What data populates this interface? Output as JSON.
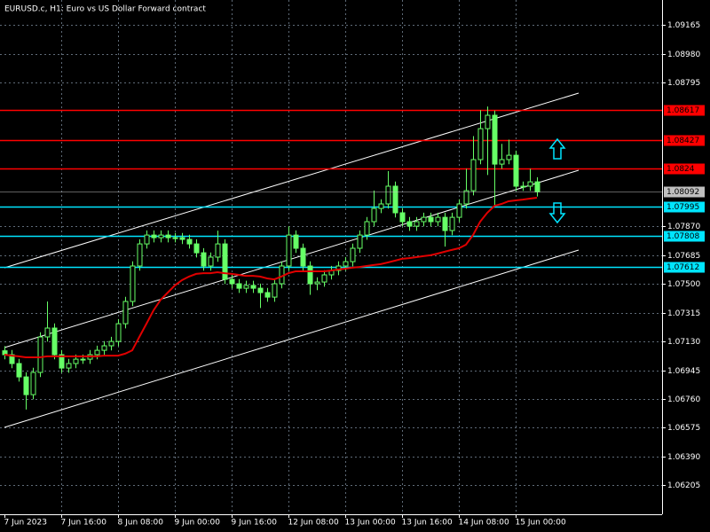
{
  "chart_data": {
    "type": "candlestick",
    "title": "EURUSD.c, H1:  Euro vs US Dollar Forward contract",
    "categories": [
      "7 Jun 2023",
      null,
      null,
      null,
      null,
      null,
      null,
      null,
      "7 Jun 16:00",
      null,
      null,
      null,
      null,
      null,
      null,
      null,
      "8 Jun 08:00",
      null,
      null,
      null,
      null,
      null,
      null,
      null,
      "9 Jun 00:00",
      null,
      null,
      null,
      null,
      null,
      null,
      null,
      "9 Jun 16:00",
      null,
      null,
      null,
      null,
      null,
      null,
      null,
      "12 Jun 08:00",
      null,
      null,
      null,
      null,
      null,
      null,
      null,
      "13 Jun 00:00",
      null,
      null,
      null,
      null,
      null,
      null,
      null,
      "13 Jun 16:00",
      null,
      null,
      null,
      null,
      null,
      null,
      null,
      "14 Jun 08:00",
      null,
      null,
      null,
      null,
      null,
      null,
      null,
      "15 Jun 00:00",
      null,
      null,
      null
    ],
    "open": [
      1.0707,
      1.07045,
      1.06988,
      1.06902,
      1.06788,
      1.06931,
      1.07159,
      1.07216,
      1.07045,
      1.06959,
      1.06988,
      1.07016,
      1.07016,
      1.07045,
      1.07073,
      1.07102,
      1.0713,
      1.07244,
      1.07387,
      1.07615,
      1.07757,
      1.07814,
      1.07797,
      1.07814,
      1.07797,
      1.07797,
      1.07786,
      1.07757,
      1.077,
      1.07615,
      1.07672,
      1.07757,
      1.07529,
      1.07501,
      1.07472,
      1.0749,
      1.07472,
      1.07444,
      1.07415,
      1.07501,
      1.07615,
      1.07814,
      1.07729,
      1.07615,
      1.07501,
      1.07512,
      1.07558,
      1.07586,
      1.07615,
      1.07643,
      1.07729,
      1.07814,
      1.079,
      1.07985,
      1.08014,
      1.08128,
      1.07957,
      1.079,
      1.07871,
      1.079,
      1.07928,
      1.079,
      1.07928,
      1.07843,
      1.07928,
      1.08014,
      1.08099,
      1.08299,
      1.08498,
      1.08584,
      1.0827,
      1.08299,
      1.08327,
      1.08128,
      1.08128,
      1.08156
    ],
    "high": [
      1.071,
      1.07075,
      1.07018,
      1.06932,
      1.06961,
      1.07189,
      1.07387,
      1.07246,
      1.07075,
      1.07018,
      1.07046,
      1.07046,
      1.07075,
      1.07103,
      1.07132,
      1.0716,
      1.07274,
      1.07417,
      1.07645,
      1.07787,
      1.07844,
      1.07844,
      1.07844,
      1.07844,
      1.07827,
      1.07827,
      1.07816,
      1.07787,
      1.0773,
      1.07702,
      1.07842,
      1.07787,
      1.07559,
      1.07531,
      1.0752,
      1.0752,
      1.07502,
      1.07474,
      1.07531,
      1.07645,
      1.0787,
      1.07844,
      1.07759,
      1.07645,
      1.07542,
      1.07588,
      1.07616,
      1.07645,
      1.07673,
      1.07759,
      1.07844,
      1.0793,
      1.081,
      1.08044,
      1.08225,
      1.08158,
      1.07987,
      1.0793,
      1.0793,
      1.07958,
      1.07958,
      1.07958,
      1.07958,
      1.07958,
      1.08044,
      1.0824,
      1.0845,
      1.08617,
      1.0864,
      1.08614,
      1.084,
      1.08427,
      1.08357,
      1.08158,
      1.0824,
      1.08186
    ],
    "low": [
      1.07015,
      1.06958,
      1.06872,
      1.06692,
      1.06758,
      1.06901,
      1.07129,
      1.07015,
      1.06929,
      1.06929,
      1.06958,
      1.06986,
      1.06986,
      1.07015,
      1.07043,
      1.07072,
      1.071,
      1.07214,
      1.07357,
      1.07585,
      1.07727,
      1.07767,
      1.07767,
      1.07767,
      1.07767,
      1.07756,
      1.07727,
      1.0767,
      1.07585,
      1.07585,
      1.07642,
      1.07499,
      1.07471,
      1.07442,
      1.07442,
      1.07442,
      1.07345,
      1.07385,
      1.07385,
      1.07471,
      1.07585,
      1.07699,
      1.07585,
      1.0743,
      1.0746,
      1.07482,
      1.07528,
      1.07556,
      1.07585,
      1.07613,
      1.07699,
      1.07784,
      1.0787,
      1.07955,
      1.07984,
      1.07927,
      1.0787,
      1.07841,
      1.07841,
      1.0787,
      1.0787,
      1.0787,
      1.0774,
      1.07813,
      1.07898,
      1.07984,
      1.08069,
      1.08269,
      1.082,
      1.08,
      1.0824,
      1.08269,
      1.08098,
      1.08098,
      1.08098,
      1.08062
    ],
    "close": [
      1.07045,
      1.06988,
      1.06902,
      1.06788,
      1.06931,
      1.07159,
      1.07216,
      1.07045,
      1.06959,
      1.06988,
      1.07016,
      1.07016,
      1.07045,
      1.07073,
      1.07102,
      1.0713,
      1.07244,
      1.07387,
      1.07615,
      1.07757,
      1.07814,
      1.07797,
      1.07814,
      1.07797,
      1.07797,
      1.07786,
      1.07757,
      1.077,
      1.07615,
      1.07672,
      1.07757,
      1.07529,
      1.07501,
      1.07472,
      1.0749,
      1.07472,
      1.07444,
      1.07415,
      1.07501,
      1.07615,
      1.07814,
      1.07729,
      1.07615,
      1.07501,
      1.07512,
      1.07558,
      1.07586,
      1.07615,
      1.07643,
      1.07729,
      1.07814,
      1.079,
      1.07985,
      1.08014,
      1.08128,
      1.07957,
      1.079,
      1.07871,
      1.079,
      1.07928,
      1.079,
      1.07928,
      1.07843,
      1.07928,
      1.08014,
      1.08099,
      1.08299,
      1.08498,
      1.08584,
      1.0827,
      1.08299,
      1.08327,
      1.08128,
      1.08128,
      1.08156,
      1.08092
    ],
    "color": "#66ff66",
    "moving_average": {
      "color": "#e00000",
      "values": [
        1.07045,
        1.07039,
        1.07034,
        1.07028,
        1.07028,
        1.07028,
        1.07034,
        1.07034,
        1.07034,
        1.07034,
        1.07034,
        1.07034,
        1.07034,
        1.07034,
        1.07039,
        1.07039,
        1.07039,
        1.07051,
        1.07073,
        1.07159,
        1.07244,
        1.0733,
        1.07398,
        1.07444,
        1.0749,
        1.07524,
        1.07547,
        1.07564,
        1.07569,
        1.07569,
        1.07575,
        1.07569,
        1.07564,
        1.07558,
        1.07552,
        1.07552,
        1.07547,
        1.07535,
        1.07529,
        1.07547,
        1.07569,
        1.07581,
        1.07581,
        1.07581,
        1.07581,
        1.07581,
        1.07586,
        1.07592,
        1.07598,
        1.07604,
        1.07609,
        1.07615,
        1.07621,
        1.07627,
        1.07638,
        1.07649,
        1.07661,
        1.07666,
        1.07672,
        1.07678,
        1.07684,
        1.07695,
        1.07707,
        1.07718,
        1.07729,
        1.07752,
        1.07814,
        1.079,
        1.07957,
        1.08001,
        1.08014,
        1.08031,
        1.08037,
        1.08042,
        1.08048,
        1.08054
      ]
    },
    "levels": [
      {
        "value": 1.08617,
        "color": "#ff0000"
      },
      {
        "value": 1.08427,
        "color": "#ff0000"
      },
      {
        "value": 1.0824,
        "color": "#ff0000"
      },
      {
        "value": 1.07995,
        "color": "#00e5ff"
      },
      {
        "value": 1.07808,
        "color": "#00e5ff"
      },
      {
        "value": 1.07612,
        "color": "#00e5ff"
      }
    ],
    "last_price": 1.08092,
    "ylim": [
      1.06019,
      1.09325
    ],
    "yticks": [
      1.09165,
      {
        "value": 1.0898,
        "label": "1.08980"
      },
      1.08795,
      {
        "value": 1.0787,
        "label": "1.07870"
      },
      1.07685,
      {
        "value": 1.075,
        "label": "1.07500"
      },
      1.07315,
      {
        "value": 1.0713,
        "label": "1.07130"
      },
      1.06945,
      {
        "value": 1.0676,
        "label": "1.06760"
      },
      1.06575,
      {
        "value": 1.0639,
        "label": "1.06390"
      },
      1.06205
    ],
    "grid": true
  }
}
